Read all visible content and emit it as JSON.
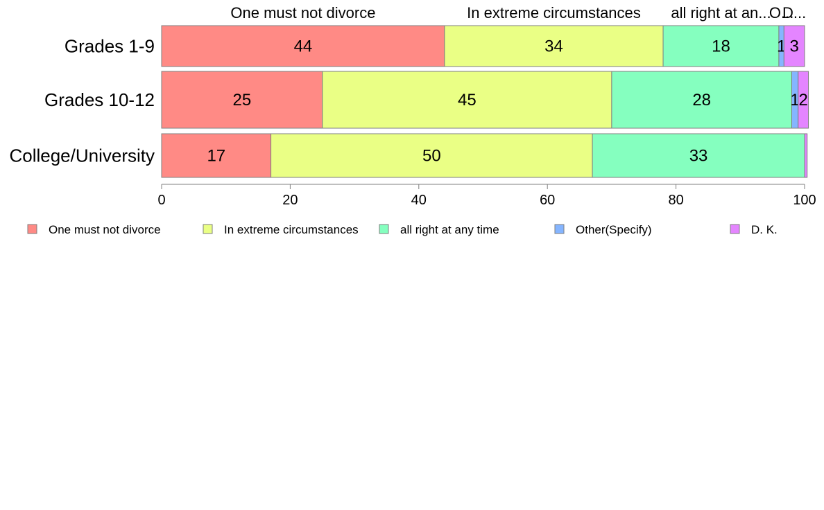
{
  "chart_data": {
    "type": "bar",
    "orientation": "horizontal",
    "stacked": true,
    "categories": [
      "Grades 1-9",
      "Grades 10-12",
      "College/University"
    ],
    "series": [
      {
        "name": "One must not divorce",
        "short_label": "One must not divorce",
        "color": "#ff8a85",
        "values": [
          44,
          25,
          17
        ],
        "value_labels": [
          "44",
          "25",
          "17"
        ]
      },
      {
        "name": "In extreme circumstances",
        "short_label": "In extreme circumstances",
        "color": "#eaff85",
        "values": [
          34,
          45,
          50
        ],
        "value_labels": [
          "34",
          "45",
          "50"
        ]
      },
      {
        "name": "all right at any time",
        "short_label": "all right at an...",
        "color": "#85ffbf",
        "values": [
          18,
          28,
          33
        ],
        "value_labels": [
          "18",
          "28",
          "33"
        ]
      },
      {
        "name": "Other(Specify)",
        "short_label": "O...",
        "color": "#85b5ff",
        "values": [
          0.8,
          1,
          0
        ],
        "value_labels": [
          "1",
          "1",
          ""
        ]
      },
      {
        "name": "D. K.",
        "short_label": "D...",
        "color": "#e485ff",
        "values": [
          3.2,
          1.6,
          0.4
        ],
        "value_labels": [
          "3",
          "2",
          ""
        ]
      }
    ],
    "xlim": [
      0,
      100
    ],
    "xticks": [
      0,
      20,
      40,
      60,
      80,
      100
    ],
    "tick_labels": [
      "0",
      "20",
      "40",
      "60",
      "80",
      "100"
    ],
    "title": "",
    "xlabel": "",
    "ylabel": "",
    "legend_position": "bottom",
    "grid": false
  }
}
